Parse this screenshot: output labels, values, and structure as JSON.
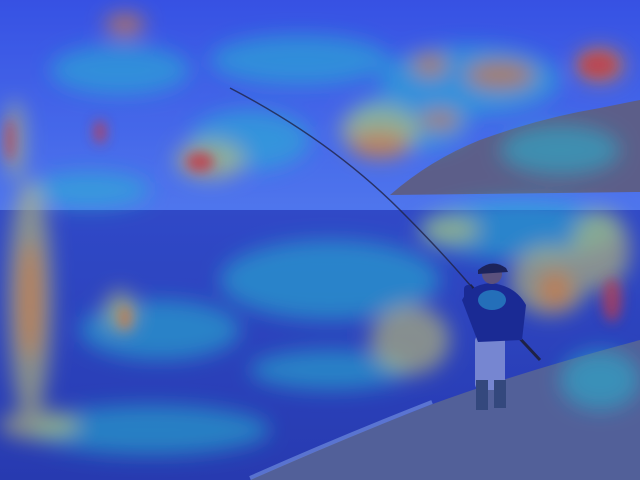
{
  "image": {
    "subject": "fisherman-on-shore",
    "overlay": "attention-heatmap",
    "colors": {
      "heat_low": "#1e2fd8",
      "heat_mid": "#29d6d0",
      "heat_warm": "#e8e35a",
      "heat_high": "#f08a2a",
      "heat_peak": "#e5402a",
      "sky": "#4b6cf0",
      "sea": "#2f4ab8",
      "sand": "#5f6c8c",
      "hill": "#6b6a78",
      "jacket": "#1a2a86",
      "cap": "#1d2140",
      "rod": "#202026"
    }
  }
}
